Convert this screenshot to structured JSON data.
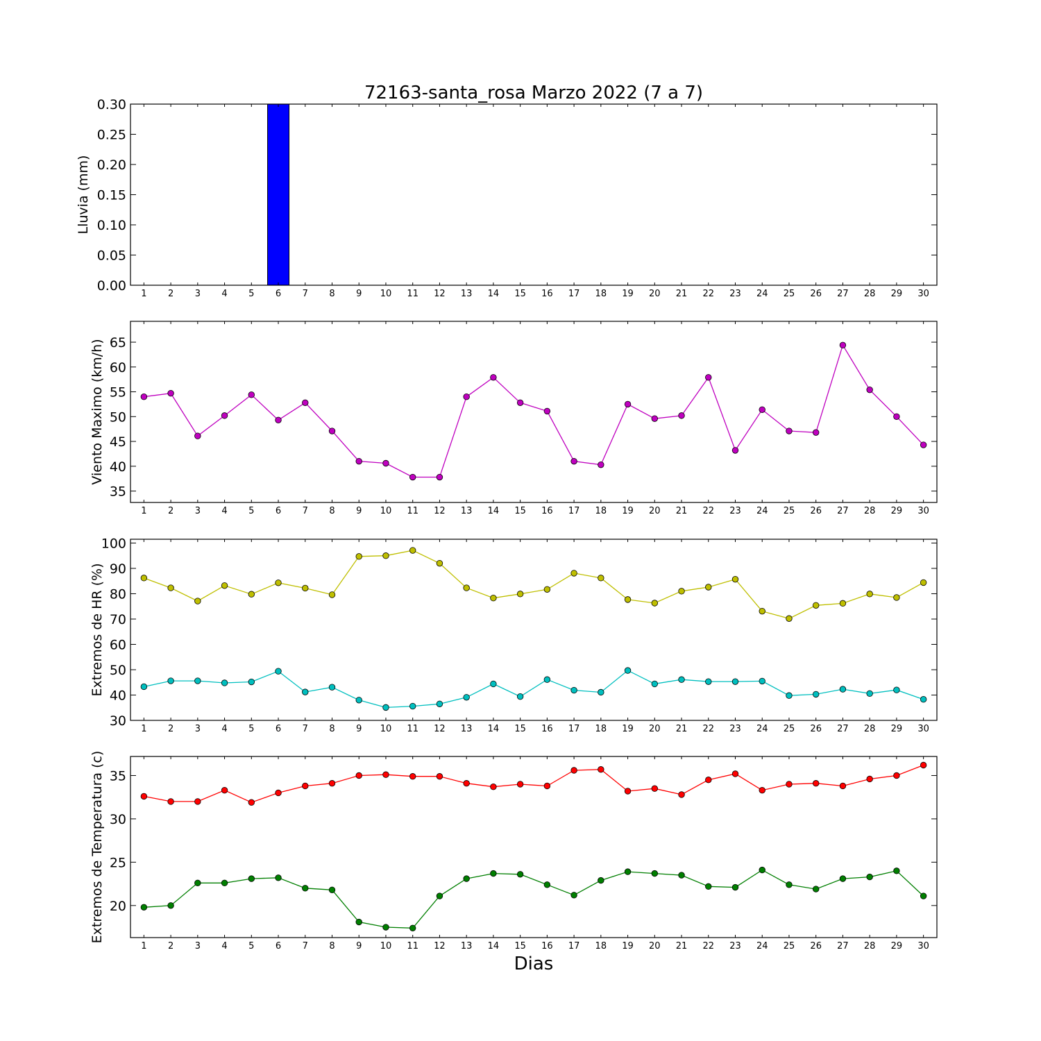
{
  "figure": {
    "title": "72163-santa_rosa Marzo 2022  (7 a 7)",
    "xlabel": "Dias"
  },
  "chart_data": [
    {
      "type": "bar",
      "ylabel": "Lluvia (mm)",
      "ylim": [
        0,
        0.3
      ],
      "yticks": [
        "0.00",
        "0.05",
        "0.10",
        "0.15",
        "0.20",
        "0.25",
        "0.30"
      ],
      "xlim": [
        0.5,
        30.5
      ],
      "categories": [
        1,
        2,
        3,
        4,
        5,
        6,
        7,
        8,
        9,
        10,
        11,
        12,
        13,
        14,
        15,
        16,
        17,
        18,
        19,
        20,
        21,
        22,
        23,
        24,
        25,
        26,
        27,
        28,
        29,
        30
      ],
      "series": [
        {
          "color": "#0000ff",
          "values": [
            0,
            0,
            0,
            0,
            0,
            0.3,
            0,
            0,
            0,
            0,
            0,
            0,
            0,
            0,
            0,
            0,
            0,
            0,
            0,
            0,
            0,
            0,
            0,
            0,
            0,
            0,
            0,
            0,
            0,
            0
          ]
        }
      ],
      "grid": false
    },
    {
      "type": "line",
      "ylabel": "Viento Maximo (km/h)",
      "ylim": [
        32.7,
        69.2
      ],
      "yticks": [
        "35",
        "40",
        "45",
        "50",
        "55",
        "60",
        "65"
      ],
      "xlim": [
        0.5,
        30.5
      ],
      "x": [
        1,
        2,
        3,
        4,
        5,
        6,
        7,
        8,
        9,
        10,
        11,
        12,
        13,
        14,
        15,
        16,
        17,
        18,
        19,
        20,
        21,
        22,
        23,
        24,
        25,
        26,
        27,
        28,
        29,
        30
      ],
      "series": [
        {
          "color": "#bf00bf",
          "values": [
            54.0,
            54.7,
            46.1,
            50.2,
            54.4,
            49.3,
            52.8,
            47.1,
            41.0,
            40.6,
            37.8,
            37.8,
            54.0,
            57.9,
            52.8,
            51.1,
            41.0,
            40.3,
            52.5,
            49.6,
            50.2,
            57.9,
            43.2,
            51.4,
            47.1,
            46.8,
            64.4,
            55.4,
            50.0,
            44.3
          ]
        }
      ],
      "grid": false
    },
    {
      "type": "line",
      "ylabel": "Extremos de HR (%)",
      "ylim": [
        30,
        101.5
      ],
      "yticks": [
        "30",
        "40",
        "50",
        "60",
        "70",
        "80",
        "90",
        "100"
      ],
      "xlim": [
        0.5,
        30.5
      ],
      "x": [
        1,
        2,
        3,
        4,
        5,
        6,
        7,
        8,
        9,
        10,
        11,
        12,
        13,
        14,
        15,
        16,
        17,
        18,
        19,
        20,
        21,
        22,
        23,
        24,
        25,
        26,
        27,
        28,
        29,
        30
      ],
      "series": [
        {
          "color": "#bfbf00",
          "values": [
            86.2,
            82.3,
            77.1,
            83.2,
            79.8,
            84.3,
            82.2,
            79.6,
            94.7,
            95.0,
            97.1,
            92.0,
            82.3,
            78.3,
            79.9,
            81.7,
            88.1,
            86.2,
            77.7,
            76.3,
            81.0,
            82.6,
            85.7,
            73.1,
            70.2,
            75.4,
            76.2,
            79.9,
            78.5,
            84.4
          ]
        },
        {
          "color": "#00bfbf",
          "values": [
            43.3,
            45.6,
            45.6,
            44.8,
            45.2,
            49.4,
            41.2,
            43.1,
            38.0,
            35.1,
            35.6,
            36.5,
            39.1,
            44.4,
            39.4,
            46.1,
            41.9,
            41.1,
            49.7,
            44.4,
            46.1,
            45.3,
            45.3,
            45.5,
            39.8,
            40.3,
            42.3,
            40.6,
            42.0,
            38.3
          ]
        }
      ],
      "grid": false
    },
    {
      "type": "line",
      "ylabel": "Extremos de Temperatura (c)",
      "ylim": [
        16.3,
        37.2
      ],
      "yticks": [
        "20",
        "25",
        "30",
        "35"
      ],
      "xlim": [
        0.5,
        30.5
      ],
      "x": [
        1,
        2,
        3,
        4,
        5,
        6,
        7,
        8,
        9,
        10,
        11,
        12,
        13,
        14,
        15,
        16,
        17,
        18,
        19,
        20,
        21,
        22,
        23,
        24,
        25,
        26,
        27,
        28,
        29,
        30
      ],
      "series": [
        {
          "color": "#ff0000",
          "values": [
            32.6,
            32.0,
            32.0,
            33.3,
            31.9,
            33.0,
            33.8,
            34.1,
            35.0,
            35.1,
            34.9,
            34.9,
            34.1,
            33.7,
            34.0,
            33.8,
            35.6,
            35.7,
            33.2,
            33.5,
            32.8,
            34.5,
            35.2,
            33.3,
            34.0,
            34.1,
            33.8,
            34.6,
            35.0,
            36.2
          ]
        },
        {
          "color": "#007f00",
          "values": [
            19.8,
            20.0,
            22.6,
            22.6,
            23.1,
            23.2,
            22.0,
            21.8,
            18.1,
            17.5,
            17.4,
            21.1,
            23.1,
            23.7,
            23.6,
            22.4,
            21.2,
            22.9,
            23.9,
            23.7,
            23.5,
            22.2,
            22.1,
            24.1,
            22.4,
            21.9,
            23.1,
            23.3,
            24.0,
            21.1
          ]
        }
      ],
      "grid": false
    }
  ]
}
